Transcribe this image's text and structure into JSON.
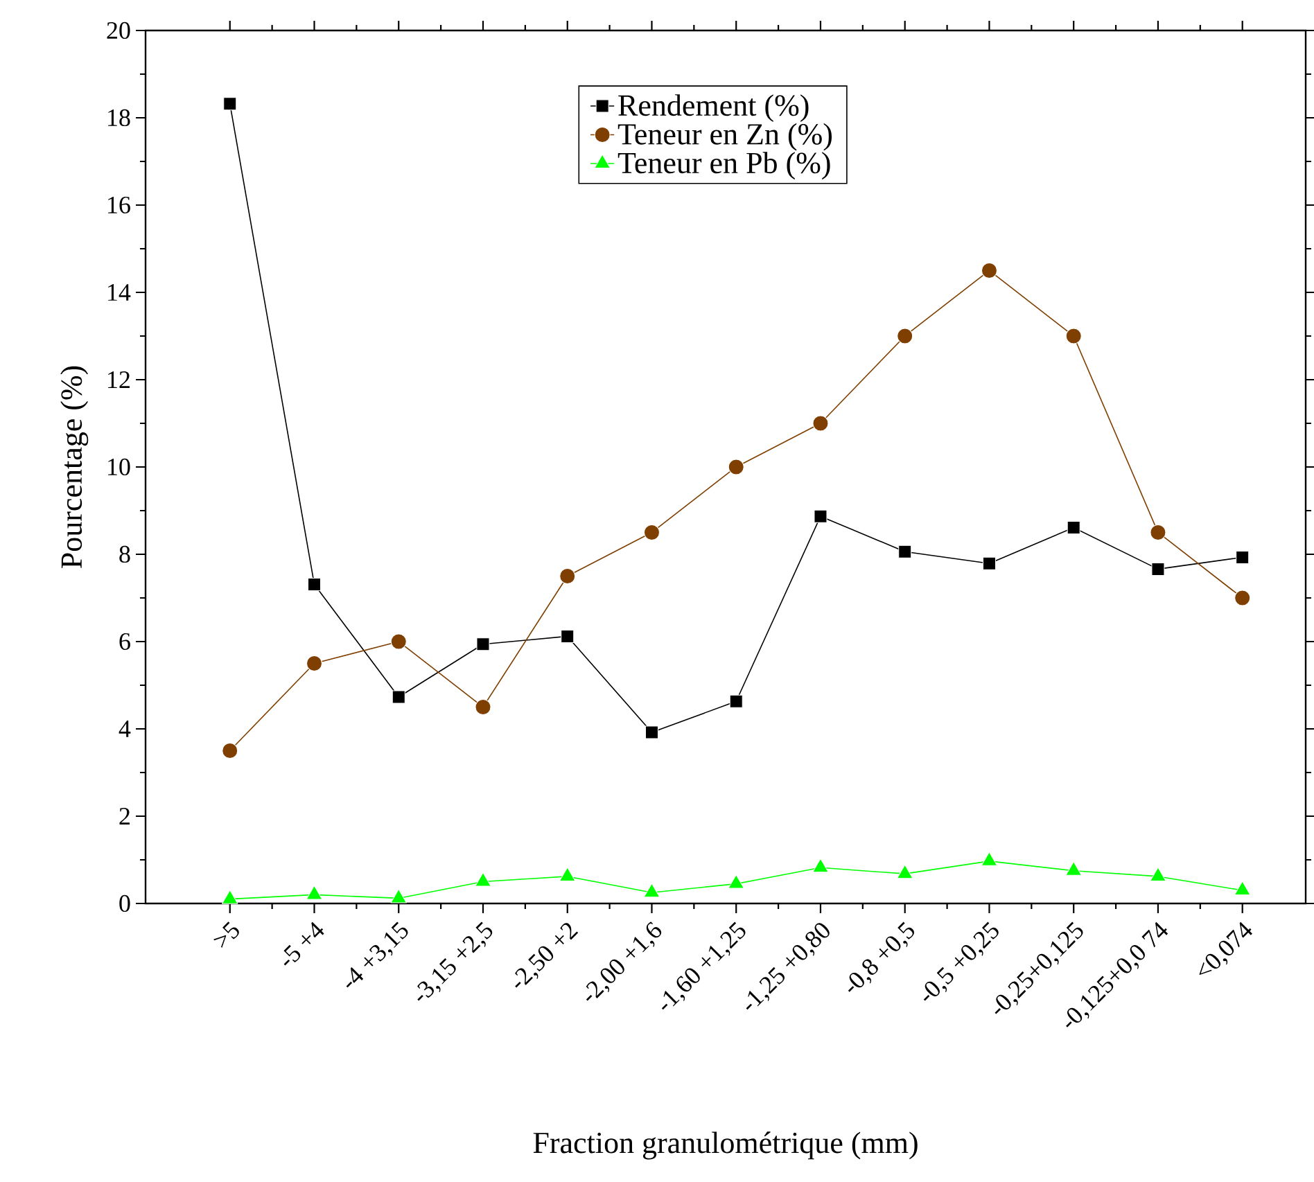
{
  "chart_data": {
    "type": "line",
    "xlabel": "Fraction granulométrique (mm)",
    "ylabel": "Pourcentage (%)",
    "categories": [
      ">5",
      "-5 +4",
      "-4 +3,15",
      "-3,15 +2,5",
      "-2,50 +2",
      "-2,00 +1,6",
      "-1,60 +1,25",
      "-1,25 +0,80",
      "-0,8 +0,5",
      "-0,5 +0,25",
      "-0,25+0,125",
      "-0,125+0,0 74",
      "<0,074"
    ],
    "series": [
      {
        "name": "Rendement (%)",
        "color": "#000000",
        "marker": "square",
        "values": [
          18.32,
          7.31,
          4.73,
          5.94,
          6.12,
          3.92,
          4.63,
          8.87,
          8.06,
          7.79,
          8.61,
          7.66,
          7.93
        ]
      },
      {
        "name": "Teneur en Zn (%)",
        "color": "#7f3f00",
        "marker": "circle",
        "values": [
          3.5,
          5.5,
          6.0,
          4.5,
          7.5,
          8.5,
          10.0,
          11.0,
          13.0,
          14.5,
          13.0,
          8.5,
          7.0
        ]
      },
      {
        "name": "Teneur en Pb (%)",
        "color": "#00ff00",
        "marker": "triangle",
        "values": [
          0.1,
          0.2,
          0.12,
          0.5,
          0.62,
          0.25,
          0.45,
          0.82,
          0.68,
          0.97,
          0.75,
          0.62,
          0.3
        ]
      }
    ],
    "ylim": [
      0,
      20
    ],
    "yticks": [
      0,
      2,
      4,
      6,
      8,
      10,
      12,
      14,
      16,
      18,
      20
    ],
    "grid": false,
    "legend": "top",
    "line_style": "solid"
  }
}
